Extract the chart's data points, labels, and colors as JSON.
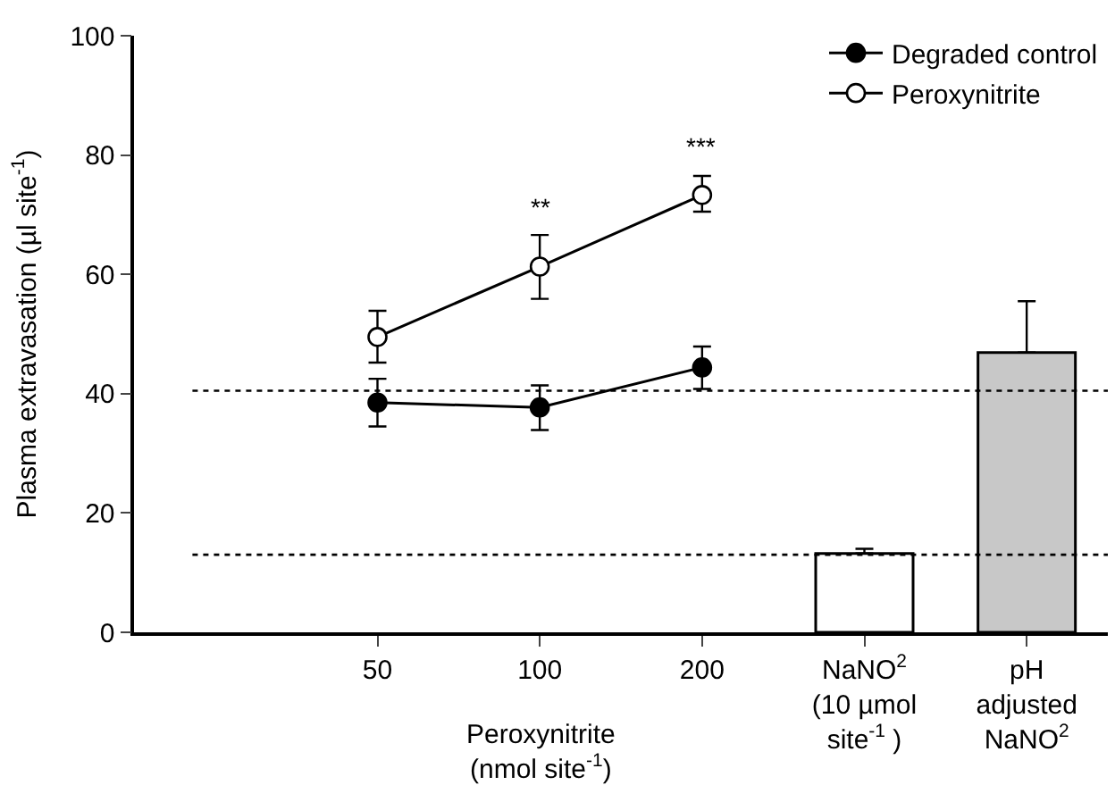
{
  "chart_data": {
    "type": "line",
    "ylabel": "Plasma extravasation (µl site$^{-1}$)",
    "xlabel": "Peroxynitrite\n(nmol site$^{-1}$)",
    "categories": [
      "50",
      "100",
      "200",
      "NaNO$^{2}$\n(10 µmol\nsite$^{-1}$ )",
      "pH\nadjusted\nNaNO$^{2}$"
    ],
    "series": [
      {
        "name": "Degraded control",
        "color": "#000000",
        "values": [
          38.5,
          37.7,
          44.4,
          null,
          null
        ],
        "errors": [
          [
            34.5,
            42.5
          ],
          [
            33.9,
            41.4
          ],
          [
            40.8,
            47.9
          ],
          null,
          null
        ]
      },
      {
        "name": "Peroxynitrite",
        "color": "#ffffff",
        "values": [
          49.5,
          61.3,
          73.3,
          null,
          null
        ],
        "errors": [
          [
            45.2,
            53.9
          ],
          [
            55.9,
            66.6
          ],
          [
            70.5,
            76.5
          ],
          null,
          null
        ]
      },
      {
        "type": "bar",
        "colors": [
          "#ffffff",
          "#ffffff",
          "#ffffff",
          "#ffffff",
          "#c8c8c8"
        ],
        "values": [
          null,
          null,
          null,
          13.2,
          46.9
        ],
        "errors": [
          null,
          null,
          null,
          [
            13.2,
            14.0
          ],
          [
            46.9,
            55.5
          ]
        ]
      }
    ],
    "ylim": [
      0,
      100
    ],
    "yticks": [
      0,
      20,
      40,
      60,
      80,
      100
    ],
    "ref_lines": [
      {
        "axis": "y",
        "value": 40.5,
        "line_style": "dotted"
      },
      {
        "axis": "y",
        "value": 13.0,
        "line_style": "dotted"
      }
    ],
    "annotations": [
      "**",
      "***"
    ],
    "marker": "circle",
    "line_style": "solid",
    "legend": "top right"
  }
}
